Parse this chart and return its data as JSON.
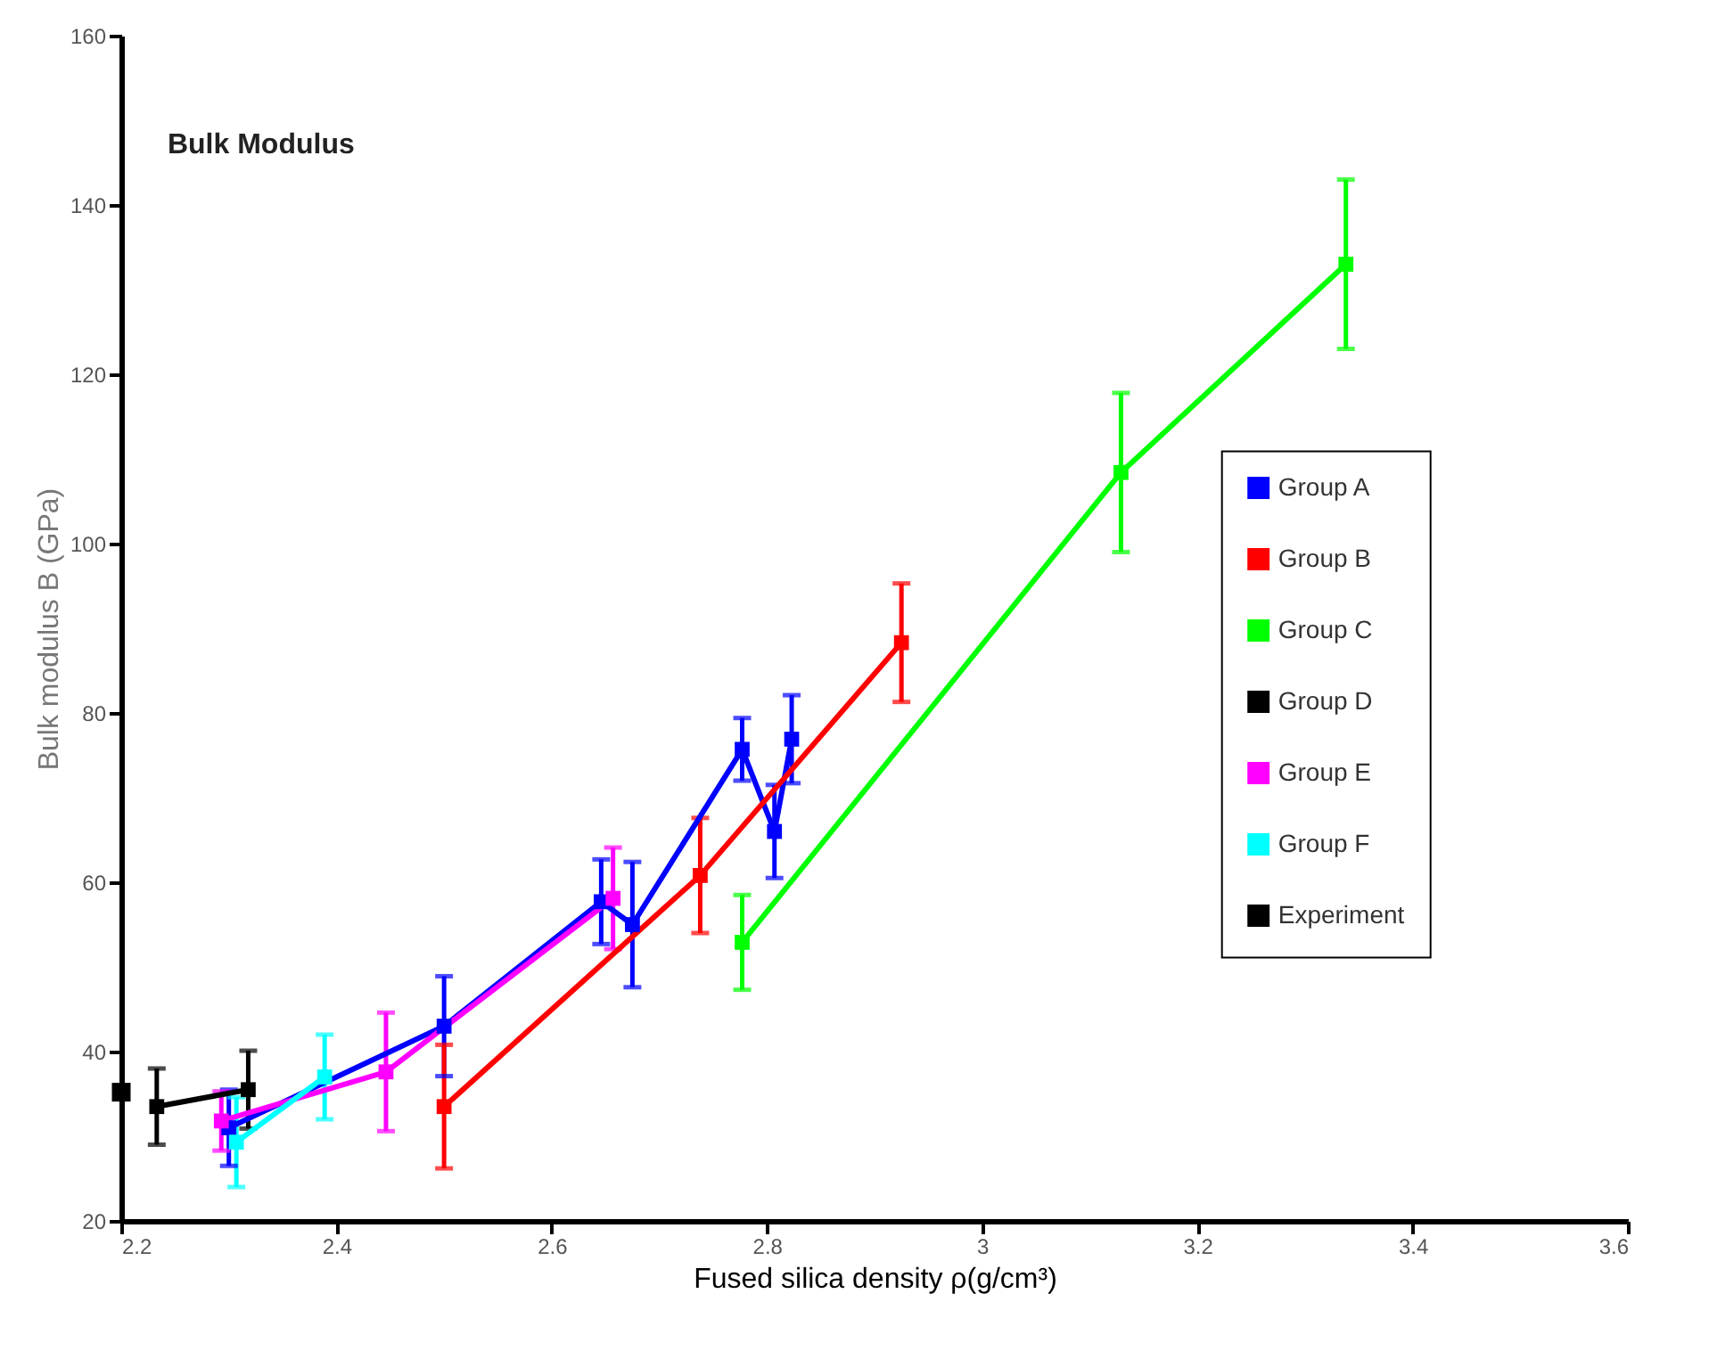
{
  "chart_data": {
    "type": "line",
    "title": "Bulk Modulus",
    "xlabel": "Fused silica density ρ(g/cm³)",
    "ylabel": "Bulk modulus B (GPa)",
    "xlim": [
      2.2,
      3.6
    ],
    "xticks": [
      2.2,
      2.4,
      2.6,
      2.8,
      3,
      3.2,
      3.4,
      3.6
    ],
    "ylim": [
      20,
      160
    ],
    "yticks": [
      20,
      40,
      60,
      80,
      100,
      120,
      140,
      160
    ],
    "grid": false,
    "legend": "right",
    "marker": "square",
    "line_style": "solid",
    "series": [
      {
        "name": "Group A",
        "color": "#0000ff",
        "x": [
          2.3,
          2.5,
          2.646,
          2.675,
          2.777,
          2.807,
          2.823
        ],
        "values": [
          31,
          43,
          57.7,
          55,
          75.7,
          66,
          76.9
        ],
        "errors": [
          4.5,
          5.9,
          5,
          7.4,
          3.7,
          5.5,
          5.2
        ]
      },
      {
        "name": "Group B",
        "color": "#ff0000",
        "x": [
          2.5,
          2.738,
          2.925
        ],
        "values": [
          33.5,
          60.8,
          88.3
        ],
        "errors": [
          7.3,
          6.8,
          7
        ]
      },
      {
        "name": "Group C",
        "color": "#00ff00",
        "x": [
          2.777,
          3.129,
          3.338
        ],
        "values": [
          52.9,
          108.4,
          133
        ],
        "errors": [
          5.6,
          9.4,
          10
        ]
      },
      {
        "name": "Group D",
        "color": "#000000",
        "x": [
          2.233,
          2.318
        ],
        "values": [
          33.5,
          35.5
        ],
        "errors": [
          4.5,
          4.6
        ]
      },
      {
        "name": "Group E",
        "color": "#ff00ff",
        "x": [
          2.293,
          2.446,
          2.657
        ],
        "values": [
          31.8,
          37.6,
          58.1
        ],
        "errors": [
          3.5,
          7,
          6
        ]
      },
      {
        "name": "Group F",
        "color": "#00ffff",
        "x": [
          2.307,
          2.389
        ],
        "values": [
          29.3,
          37
        ],
        "errors": [
          5.3,
          5
        ]
      },
      {
        "name": "Experiment",
        "type": "scatter",
        "color": "#000000",
        "x": [
          2.2
        ],
        "values": [
          35.2
        ]
      }
    ]
  }
}
